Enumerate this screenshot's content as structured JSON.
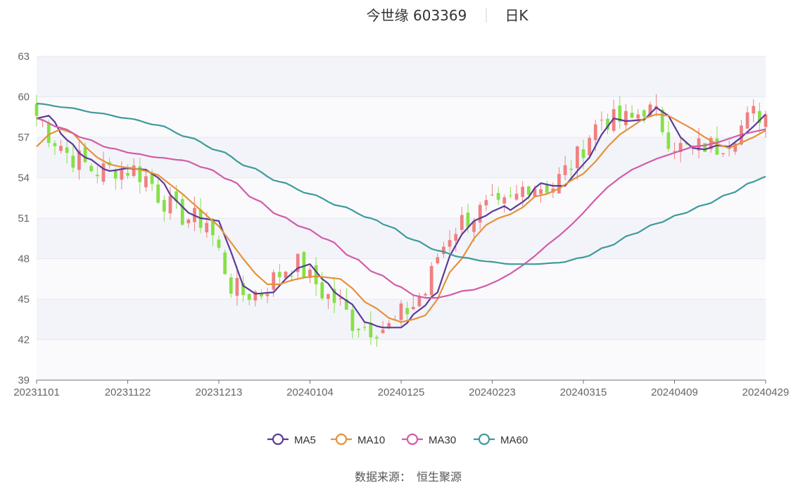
{
  "title": {
    "name": "今世缘 603369",
    "period": "日K"
  },
  "source": {
    "label": "数据来源：",
    "value": "恒生聚源"
  },
  "colors": {
    "up": "#f08080",
    "down": "#86e047",
    "grid": "#e6e9f0",
    "band": "#f3f4f9",
    "axis": "#6e7079",
    "MA5": "#5c3a98",
    "MA10": "#e5923a",
    "MA30": "#d35ca8",
    "MA60": "#3f9a9a"
  },
  "chart_data": {
    "type": "candlestick",
    "ylim": [
      39,
      63
    ],
    "yticks": [
      39,
      42,
      45,
      48,
      51,
      54,
      57,
      60,
      63
    ],
    "xtick_labels": [
      "20231101",
      "20231122",
      "20231213",
      "20240104",
      "20240125",
      "20240223",
      "20240315",
      "20240409",
      "20240429"
    ],
    "xtick_index": [
      0,
      15,
      30,
      45,
      60,
      75,
      90,
      105,
      120
    ],
    "n_points": 121,
    "grid": true,
    "legend_position": "bottom",
    "ma_anchors": {
      "MA5": [
        [
          0,
          58.4
        ],
        [
          2,
          58.6
        ],
        [
          5,
          56.8
        ],
        [
          8,
          55.5
        ],
        [
          12,
          54.5
        ],
        [
          15,
          54.7
        ],
        [
          18,
          54.6
        ],
        [
          20,
          54.0
        ],
        [
          23,
          52.3
        ],
        [
          25,
          51.4
        ],
        [
          27,
          51.0
        ],
        [
          30,
          50.8
        ],
        [
          32,
          48.5
        ],
        [
          34,
          46.0
        ],
        [
          36,
          45.4
        ],
        [
          39,
          45.5
        ],
        [
          41,
          46.5
        ],
        [
          43,
          47.3
        ],
        [
          45,
          47.6
        ],
        [
          47,
          46.5
        ],
        [
          50,
          45.2
        ],
        [
          52,
          44.6
        ],
        [
          54,
          43.3
        ],
        [
          57,
          42.9
        ],
        [
          60,
          42.9
        ],
        [
          63,
          44.2
        ],
        [
          66,
          45.5
        ],
        [
          68,
          48.2
        ],
        [
          70,
          49.8
        ],
        [
          72,
          50.8
        ],
        [
          74,
          51.2
        ],
        [
          75,
          51.5
        ],
        [
          77,
          51.9
        ],
        [
          78,
          51.6
        ],
        [
          80,
          52.2
        ],
        [
          83,
          53.6
        ],
        [
          85,
          53.4
        ],
        [
          87,
          53.4
        ],
        [
          89,
          54.5
        ],
        [
          91,
          55.5
        ],
        [
          93,
          57.2
        ],
        [
          95,
          58.4
        ],
        [
          97,
          58.2
        ],
        [
          100,
          58.3
        ],
        [
          102,
          59.2
        ],
        [
          104,
          58.6
        ],
        [
          106,
          57.0
        ],
        [
          108,
          56.2
        ],
        [
          110,
          56.1
        ],
        [
          112,
          56.4
        ],
        [
          114,
          56.3
        ],
        [
          116,
          57.0
        ],
        [
          118,
          57.8
        ],
        [
          120,
          58.7
        ]
      ],
      "MA10": [
        [
          0,
          56.3
        ],
        [
          2,
          57.2
        ],
        [
          4,
          57.6
        ],
        [
          6,
          57.3
        ],
        [
          8,
          56.3
        ],
        [
          10,
          55.5
        ],
        [
          12,
          55.0
        ],
        [
          14,
          54.8
        ],
        [
          16,
          54.7
        ],
        [
          18,
          54.5
        ],
        [
          20,
          54.2
        ],
        [
          22,
          53.5
        ],
        [
          24,
          52.8
        ],
        [
          26,
          52.0
        ],
        [
          28,
          51.2
        ],
        [
          30,
          50.4
        ],
        [
          32,
          49.2
        ],
        [
          34,
          48.0
        ],
        [
          36,
          46.9
        ],
        [
          38,
          46.1
        ],
        [
          40,
          46.1
        ],
        [
          42,
          46.4
        ],
        [
          44,
          46.6
        ],
        [
          46,
          46.7
        ],
        [
          48,
          46.6
        ],
        [
          50,
          46.5
        ],
        [
          52,
          45.8
        ],
        [
          54,
          44.8
        ],
        [
          56,
          44.3
        ],
        [
          58,
          43.6
        ],
        [
          60,
          43.3
        ],
        [
          62,
          43.5
        ],
        [
          64,
          43.8
        ],
        [
          66,
          45.0
        ],
        [
          68,
          47.0
        ],
        [
          70,
          48.0
        ],
        [
          72,
          49.5
        ],
        [
          74,
          50.5
        ],
        [
          76,
          51.0
        ],
        [
          78,
          51.3
        ],
        [
          80,
          51.8
        ],
        [
          82,
          52.6
        ],
        [
          84,
          52.8
        ],
        [
          86,
          53.2
        ],
        [
          88,
          53.8
        ],
        [
          90,
          54.3
        ],
        [
          92,
          55.2
        ],
        [
          94,
          56.3
        ],
        [
          96,
          57.2
        ],
        [
          98,
          57.8
        ],
        [
          100,
          58.4
        ],
        [
          102,
          58.7
        ],
        [
          104,
          58.6
        ],
        [
          106,
          58.1
        ],
        [
          108,
          57.6
        ],
        [
          110,
          57.0
        ],
        [
          112,
          56.5
        ],
        [
          114,
          56.2
        ],
        [
          116,
          56.6
        ],
        [
          118,
          57.0
        ],
        [
          120,
          57.5
        ]
      ],
      "MA30": [
        [
          0,
          58.4
        ],
        [
          4,
          57.7
        ],
        [
          8,
          56.9
        ],
        [
          12,
          56.2
        ],
        [
          16,
          55.8
        ],
        [
          20,
          55.5
        ],
        [
          24,
          55.3
        ],
        [
          28,
          54.7
        ],
        [
          32,
          53.8
        ],
        [
          36,
          52.4
        ],
        [
          40,
          51.2
        ],
        [
          44,
          50.3
        ],
        [
          48,
          49.4
        ],
        [
          52,
          48.1
        ],
        [
          56,
          46.9
        ],
        [
          60,
          45.9
        ],
        [
          62,
          45.3
        ],
        [
          64,
          45.1
        ],
        [
          66,
          45.1
        ],
        [
          68,
          45.3
        ],
        [
          70,
          45.6
        ],
        [
          72,
          45.7
        ],
        [
          74,
          46.0
        ],
        [
          76,
          46.4
        ],
        [
          78,
          46.9
        ],
        [
          80,
          47.5
        ],
        [
          82,
          48.2
        ],
        [
          84,
          49.0
        ],
        [
          86,
          49.7
        ],
        [
          88,
          50.5
        ],
        [
          90,
          51.4
        ],
        [
          92,
          52.4
        ],
        [
          94,
          53.3
        ],
        [
          96,
          54.0
        ],
        [
          98,
          54.6
        ],
        [
          100,
          55.0
        ],
        [
          102,
          55.4
        ],
        [
          104,
          55.7
        ],
        [
          106,
          56.0
        ],
        [
          108,
          56.3
        ],
        [
          110,
          56.4
        ],
        [
          112,
          56.6
        ],
        [
          114,
          56.9
        ],
        [
          116,
          57.2
        ],
        [
          118,
          57.4
        ],
        [
          120,
          57.6
        ]
      ],
      "MA60": [
        [
          0,
          59.5
        ],
        [
          5,
          59.2
        ],
        [
          10,
          58.8
        ],
        [
          15,
          58.4
        ],
        [
          20,
          57.9
        ],
        [
          25,
          57.0
        ],
        [
          30,
          56.0
        ],
        [
          35,
          54.8
        ],
        [
          40,
          53.7
        ],
        [
          45,
          52.8
        ],
        [
          50,
          51.9
        ],
        [
          55,
          51.0
        ],
        [
          58,
          50.4
        ],
        [
          62,
          49.4
        ],
        [
          66,
          48.6
        ],
        [
          70,
          48.1
        ],
        [
          74,
          47.8
        ],
        [
          78,
          47.6
        ],
        [
          82,
          47.6
        ],
        [
          86,
          47.7
        ],
        [
          90,
          48.1
        ],
        [
          94,
          48.9
        ],
        [
          98,
          49.8
        ],
        [
          102,
          50.6
        ],
        [
          106,
          51.3
        ],
        [
          110,
          52.0
        ],
        [
          114,
          52.8
        ],
        [
          118,
          53.7
        ],
        [
          120,
          54.1
        ]
      ]
    },
    "series": [
      {
        "name": "MA5",
        "color": "#5c3a98"
      },
      {
        "name": "MA10",
        "color": "#e5923a"
      },
      {
        "name": "MA30",
        "color": "#d35ca8"
      },
      {
        "name": "MA60",
        "color": "#3f9a9a"
      }
    ]
  }
}
